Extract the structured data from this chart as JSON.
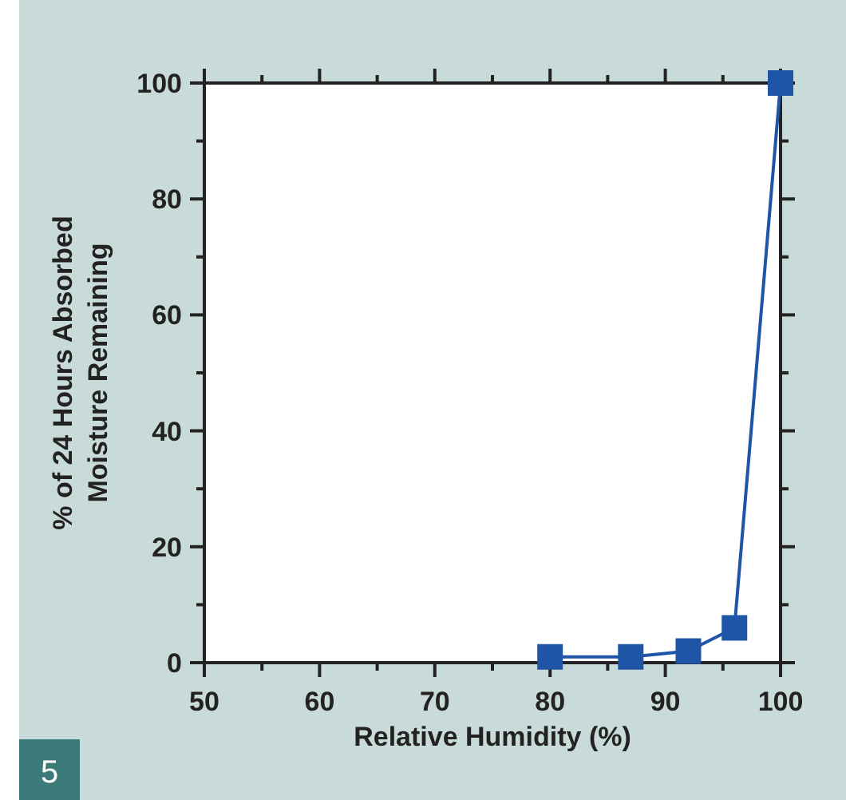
{
  "chart_data": {
    "type": "line",
    "xlabel": "Relative Humidity (%)",
    "ylabel": "% of 24 Hours Absorbed\nMoisture Remaining",
    "x": [
      80,
      87,
      92,
      96,
      100
    ],
    "series": [
      {
        "color": "#1f55a6",
        "values": [
          1,
          1,
          2,
          6,
          100
        ]
      }
    ],
    "marker": "square",
    "line_style": "solid",
    "grid": false,
    "xlim": [
      50,
      100
    ],
    "xticks": [
      50,
      {
        "value": 55,
        "label": null
      },
      60,
      {
        "value": 65,
        "label": null
      },
      70,
      {
        "value": 75,
        "label": null
      },
      80,
      {
        "value": 85,
        "label": null
      },
      90,
      {
        "value": 95,
        "label": null
      },
      100
    ],
    "ylim": [
      0,
      100
    ],
    "yticks": [
      0,
      {
        "value": 10,
        "label": null
      },
      20,
      {
        "value": 30,
        "label": null
      },
      40,
      {
        "value": 50,
        "label": null
      },
      60,
      {
        "value": 70,
        "label": null
      },
      80,
      {
        "value": 90,
        "label": null
      },
      100
    ],
    "annotations": [
      "5"
    ]
  }
}
